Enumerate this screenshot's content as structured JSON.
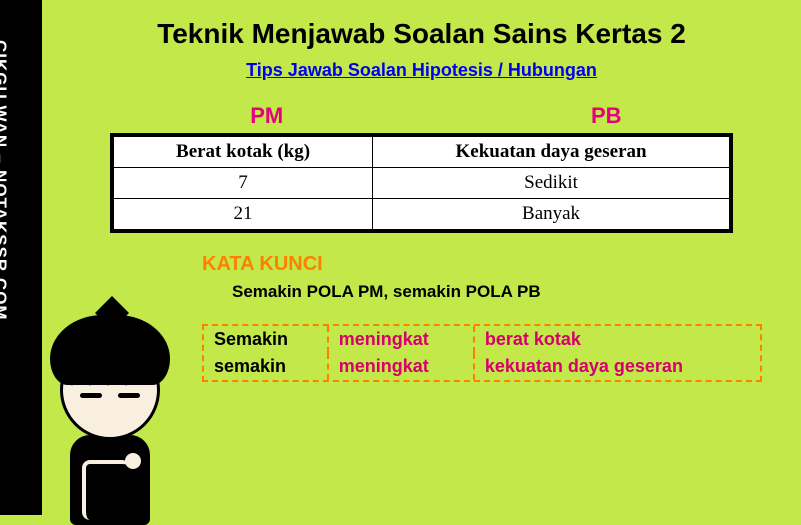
{
  "sidebar": {
    "text": "CIKGU WAN – NOTAKSSR.COM"
  },
  "title": "Teknik Menjawab Soalan Sains Kertas 2",
  "subtitle": "Tips Jawab Soalan Hipotesis / Hubungan",
  "labels": {
    "pm": "PM",
    "pb": "PB"
  },
  "table": {
    "columns": [
      "Berat kotak (kg)",
      "Kekuatan daya geseran"
    ],
    "rows": [
      [
        "7",
        "Sedikit"
      ],
      [
        "21",
        "Banyak"
      ]
    ]
  },
  "kata_kunci": {
    "label": "KATA KUNCI",
    "text": "Semakin POLA PM, semakin POLA PB"
  },
  "answer": {
    "rows": [
      {
        "c1": "Semakin",
        "c2": "meningkat",
        "c3": "berat kotak"
      },
      {
        "c1": "semakin",
        "c2": "meningkat",
        "c3": "kekuatan daya geseran"
      }
    ]
  },
  "colors": {
    "bg": "#c3e84a",
    "magenta": "#e6007e",
    "orange": "#ff8000",
    "link": "#0000ee"
  }
}
